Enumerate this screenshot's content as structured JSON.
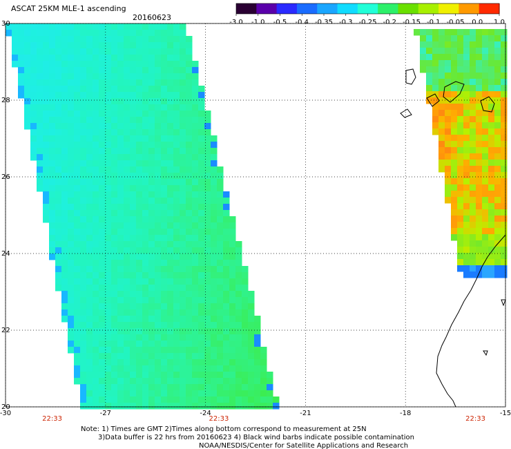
{
  "header": {
    "title": "ASCAT 25KM MLE-1 ascending",
    "date": "20160623"
  },
  "colorbar": {
    "labels": [
      "-3.0",
      "-1.0",
      "-0.5",
      "-0.4",
      "-0.35",
      "-0.3",
      "-0.25",
      "-0.2",
      "-0.15",
      "-0.1",
      "-0.05",
      "0.0",
      "1.0"
    ],
    "colors": [
      "#2a0033",
      "#5a00aa",
      "#2a2aff",
      "#1a6cff",
      "#1aa6ff",
      "#11dcff",
      "#22ffd8",
      "#2df06a",
      "#6ae000",
      "#a8f000",
      "#f0f000",
      "#ff9a00",
      "#ff2a00"
    ]
  },
  "map": {
    "lat_labels": [
      "30",
      "28",
      "26",
      "24",
      "22",
      "20"
    ],
    "lon_labels": [
      "-30",
      "-27",
      "-24",
      "-21",
      "-18",
      "-15"
    ],
    "lat_ticks": [
      30,
      28,
      26,
      24,
      22,
      20
    ],
    "lon_ticks": [
      -30,
      -27,
      -24,
      -21,
      -18,
      -15
    ],
    "lat_range": [
      20,
      30
    ],
    "lon_range": [
      -30,
      -15
    ],
    "pass_times": [
      "22:33",
      "22:33",
      "22:33"
    ],
    "pass_time_lons": [
      -28.6,
      -23.6,
      -15.9
    ],
    "swaths": [
      {
        "name": "west-swath",
        "dominant_value": "-0.25"
      },
      {
        "name": "east-swath",
        "dominant_value": "-0.1"
      }
    ]
  },
  "notes": {
    "line1": "Note: 1) Times are GMT 2)Times along bottom correspond to measurement at 25N",
    "line2": "3)Data buffer is 22 hrs from 20160623 4) Black wind barbs indicate possible contamination",
    "line3": "NOAA/NESDIS/Center for Satellite Applications and Research"
  }
}
